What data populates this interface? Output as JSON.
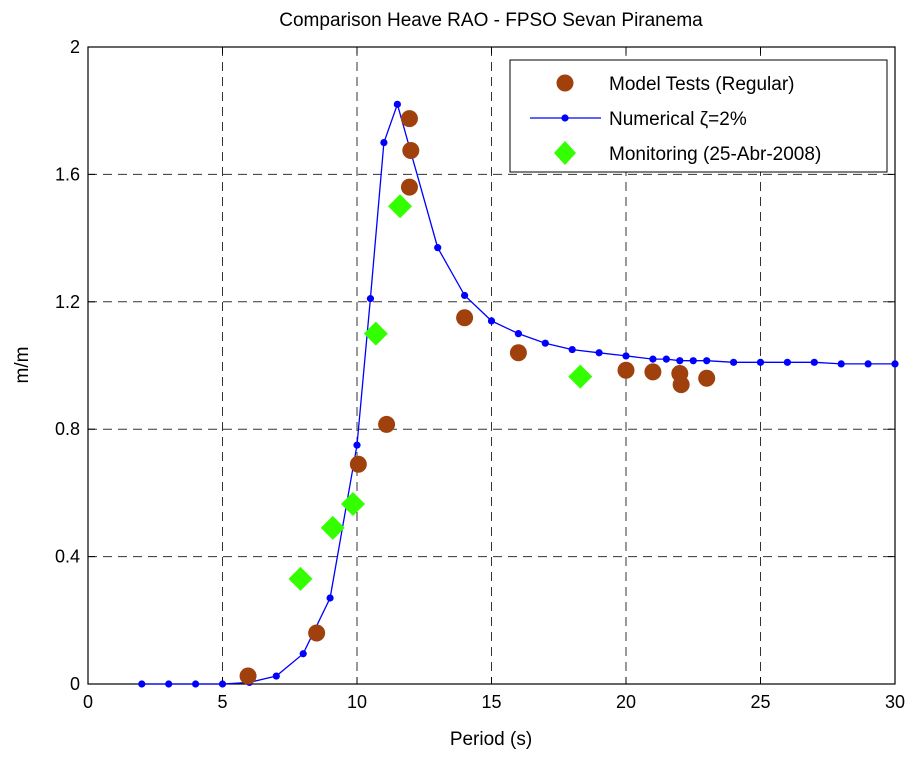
{
  "chart_data": {
    "type": "scatter",
    "title": "Comparison Heave RAO - FPSO Sevan Piranema",
    "xlabel": "Period (s)",
    "ylabel": "m/m",
    "xlim": [
      0,
      30
    ],
    "ylim": [
      0,
      2
    ],
    "xticks": [
      "0",
      "5",
      "10",
      "15",
      "20",
      "25",
      "30"
    ],
    "yticks": [
      "0",
      "0.4",
      "0.8",
      "1.2",
      "1.6",
      "2"
    ],
    "grid": "dashed",
    "legend_position": "top-right",
    "series": [
      {
        "name": "Model Tests (Regular)",
        "style": "marker",
        "marker": "circle",
        "color": "#a0400c",
        "points": [
          [
            5.95,
            0.025
          ],
          [
            8.5,
            0.16
          ],
          [
            10.05,
            0.69
          ],
          [
            11.1,
            0.815
          ],
          [
            11.95,
            1.775
          ],
          [
            12.0,
            1.675
          ],
          [
            11.95,
            1.56
          ],
          [
            14.0,
            1.15
          ],
          [
            16.0,
            1.04
          ],
          [
            20.0,
            0.985
          ],
          [
            21.0,
            0.98
          ],
          [
            22.0,
            0.975
          ],
          [
            22.05,
            0.94
          ],
          [
            23.0,
            0.96
          ]
        ]
      },
      {
        "name": "Numerical ζ=2%",
        "style": "line-marker",
        "marker": "dot",
        "color": "#0000ff",
        "points": [
          [
            2,
            0.0
          ],
          [
            3,
            0.0
          ],
          [
            4,
            0.0
          ],
          [
            5,
            0.0
          ],
          [
            6,
            0.005
          ],
          [
            7,
            0.025
          ],
          [
            8,
            0.095
          ],
          [
            9,
            0.27
          ],
          [
            10,
            0.75
          ],
          [
            10.5,
            1.21
          ],
          [
            11,
            1.7
          ],
          [
            11.5,
            1.82
          ],
          [
            12,
            1.67
          ],
          [
            13,
            1.37
          ],
          [
            14,
            1.22
          ],
          [
            15,
            1.14
          ],
          [
            16,
            1.1
          ],
          [
            17,
            1.07
          ],
          [
            18,
            1.05
          ],
          [
            19,
            1.04
          ],
          [
            20,
            1.03
          ],
          [
            21,
            1.02
          ],
          [
            21.5,
            1.02
          ],
          [
            22,
            1.015
          ],
          [
            22.5,
            1.015
          ],
          [
            23,
            1.015
          ],
          [
            24,
            1.01
          ],
          [
            25,
            1.01
          ],
          [
            26,
            1.01
          ],
          [
            27,
            1.01
          ],
          [
            28,
            1.005
          ],
          [
            29,
            1.005
          ],
          [
            30,
            1.005
          ]
        ]
      },
      {
        "name": "Monitoring (25-Abr-2008)",
        "style": "marker",
        "marker": "diamond",
        "color": "#33ff00",
        "points": [
          [
            7.9,
            0.33
          ],
          [
            9.1,
            0.49
          ],
          [
            9.85,
            0.565
          ],
          [
            10.7,
            1.1
          ],
          [
            11.6,
            1.5
          ],
          [
            18.3,
            0.965
          ]
        ]
      }
    ]
  }
}
